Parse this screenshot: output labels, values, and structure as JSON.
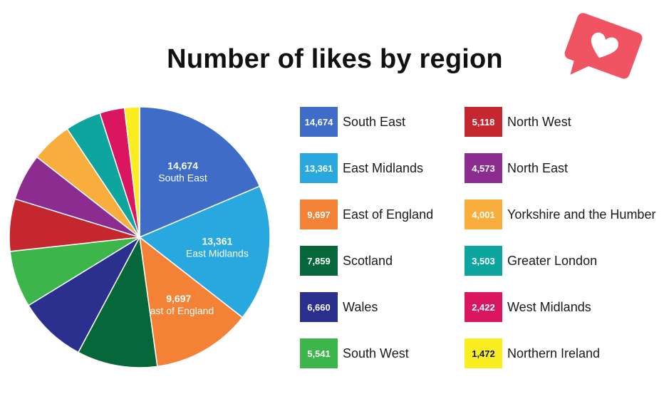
{
  "chart_data": {
    "type": "pie",
    "title": "Number of likes by region",
    "slices": [
      {
        "label": "South East",
        "value": 14674,
        "display": "14,674",
        "color": "#3e6cc6"
      },
      {
        "label": "East Midlands",
        "value": 13361,
        "display": "13,361",
        "color": "#29a8e0"
      },
      {
        "label": "East of England",
        "value": 9697,
        "display": "9,697",
        "color": "#f38236"
      },
      {
        "label": "Scotland",
        "value": 7859,
        "display": "7,859",
        "color": "#05673a"
      },
      {
        "label": "Wales",
        "value": 6660,
        "display": "6,660",
        "color": "#2b2f8d"
      },
      {
        "label": "South West",
        "value": 5541,
        "display": "5,541",
        "color": "#3cb54a"
      },
      {
        "label": "North West",
        "value": 5118,
        "display": "5,118",
        "color": "#c4282e"
      },
      {
        "label": "North East",
        "value": 4573,
        "display": "4,573",
        "color": "#8c2b90"
      },
      {
        "label": "Yorkshire and the Humber",
        "value": 4001,
        "display": "4,001",
        "color": "#f9ad3c"
      },
      {
        "label": "Greater London",
        "value": 3503,
        "display": "3,503",
        "color": "#0ea59f"
      },
      {
        "label": "West Midlands",
        "value": 2422,
        "display": "2,422",
        "color": "#da1660"
      },
      {
        "label": "Northern Ireland",
        "value": 1472,
        "display": "1,472",
        "color": "#fbee20"
      }
    ],
    "labelled_slices": 3,
    "legend_placement": "right"
  },
  "badge": {
    "icon": "heart-icon",
    "color": "#f05463"
  }
}
